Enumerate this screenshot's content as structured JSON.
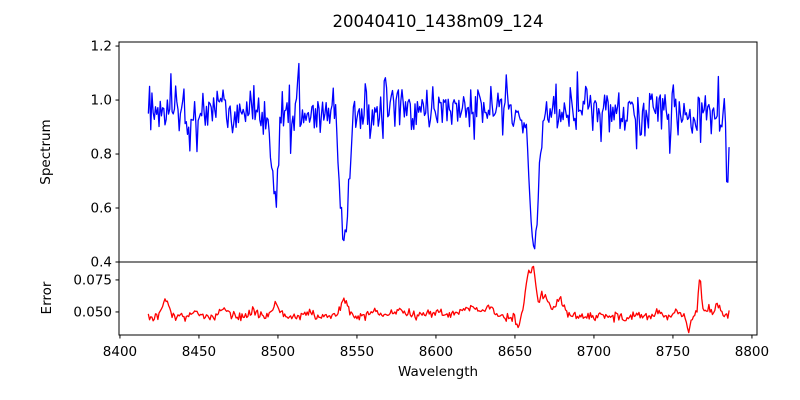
{
  "chart_data": {
    "type": "line",
    "title": "20040410_1438m09_124",
    "xlabel": "Wavelength",
    "background": "#ffffff",
    "axis_color": "#000000",
    "grid": false,
    "legend": null,
    "x_ticks": [
      8400,
      8450,
      8500,
      8550,
      8600,
      8650,
      8700,
      8750,
      8800
    ],
    "x_tick_labels": [
      "8400",
      "8450",
      "8500",
      "8550",
      "8600",
      "8650",
      "8700",
      "8750",
      "8800"
    ],
    "xlim": [
      8399.4,
      8803.2
    ],
    "x_range_of_data": [
      8418,
      8786
    ],
    "sampling_step": 0.75,
    "noise_seed": 1438,
    "key_readings": {
      "spectrum_continuum_level": 0.96,
      "absorption_minima": [
        {
          "wavelength": 8498,
          "flux": 0.62
        },
        {
          "wavelength": 8542,
          "flux": 0.46
        },
        {
          "wavelength": 8662,
          "flux": 0.44
        }
      ],
      "error_baseline": 0.047,
      "error_peak": {
        "wavelength": 8661,
        "value": 0.085
      }
    },
    "panels": [
      {
        "name": "spectrum",
        "ylabel": "Spectrum",
        "color": "#0000ff",
        "ylim": [
          0.4,
          1.215
        ],
        "yticks": [
          1.2,
          1.0,
          0.8,
          0.6,
          0.4
        ],
        "ytick_labels": [
          "1.2",
          "1.0",
          "0.8",
          "0.6",
          "0.4"
        ],
        "continuum": 0.958,
        "noise_sigma": 0.046,
        "absorption_lines": [
          {
            "center": 8443,
            "depth": 0.12,
            "sigma": 1.2
          },
          {
            "center": 8498,
            "depth": 0.345,
            "sigma": 2.0
          },
          {
            "center": 8542,
            "depth": 0.52,
            "sigma": 2.6
          },
          {
            "center": 8662,
            "depth": 0.54,
            "sigma": 2.6
          }
        ],
        "spikes": [
          {
            "center": 8465,
            "amp": 0.12,
            "sigma": 0.5
          },
          {
            "center": 8513,
            "amp": 0.2,
            "sigma": 0.5
          },
          {
            "center": 8568,
            "amp": 0.21,
            "sigma": 0.5
          },
          {
            "center": 8645,
            "amp": 0.15,
            "sigma": 0.5
          },
          {
            "center": 8727,
            "amp": -0.13,
            "sigma": 0.5
          },
          {
            "center": 8748,
            "amp": -0.13,
            "sigma": 0.6
          },
          {
            "center": 8784.5,
            "amp": -0.26,
            "sigma": 0.7
          }
        ]
      },
      {
        "name": "error",
        "ylabel": "Error",
        "color": "#ff0000",
        "ylim": [
          0.032,
          0.089
        ],
        "yticks": [
          0.075,
          0.05
        ],
        "ytick_labels": [
          "0.075",
          "0.050"
        ],
        "baseline": 0.0465,
        "noise_sigma": 0.0016,
        "features": [
          {
            "center": 8429,
            "amp": 0.013,
            "sigma": 2
          },
          {
            "center": 8447,
            "amp": 0.004,
            "sigma": 2
          },
          {
            "center": 8466,
            "amp": 0.006,
            "sigma": 3
          },
          {
            "center": 8484,
            "amp": 0.004,
            "sigma": 2
          },
          {
            "center": 8499,
            "amp": 0.009,
            "sigma": 2.2
          },
          {
            "center": 8520,
            "amp": 0.004,
            "sigma": 2
          },
          {
            "center": 8542,
            "amp": 0.013,
            "sigma": 2.4
          },
          {
            "center": 8561,
            "amp": 0.004,
            "sigma": 3
          },
          {
            "center": 8577,
            "amp": 0.005,
            "sigma": 5
          },
          {
            "center": 8600,
            "amp": 0.003,
            "sigma": 4
          },
          {
            "center": 8622,
            "amp": 0.007,
            "sigma": 5
          },
          {
            "center": 8634,
            "amp": 0.007,
            "sigma": 3
          },
          {
            "center": 8652,
            "amp": -0.009,
            "sigma": 1
          },
          {
            "center": 8658,
            "amp": 0.028,
            "sigma": 1.5
          },
          {
            "center": 8661.5,
            "amp": 0.033,
            "sigma": 1.5
          },
          {
            "center": 8668,
            "amp": 0.012,
            "sigma": 2.5
          },
          {
            "center": 8678,
            "amp": 0.011,
            "sigma": 2
          },
          {
            "center": 8670,
            "amp": 0.005,
            "sigma": 9
          },
          {
            "center": 8740,
            "amp": 0.004,
            "sigma": 2
          },
          {
            "center": 8752,
            "amp": 0.005,
            "sigma": 1.5
          },
          {
            "center": 8760,
            "amp": -0.012,
            "sigma": 1
          },
          {
            "center": 8767,
            "amp": 0.031,
            "sigma": 1
          },
          {
            "center": 8772,
            "amp": 0.007,
            "sigma": 1.5
          },
          {
            "center": 8778,
            "amp": 0.008,
            "sigma": 2
          }
        ]
      }
    ]
  }
}
